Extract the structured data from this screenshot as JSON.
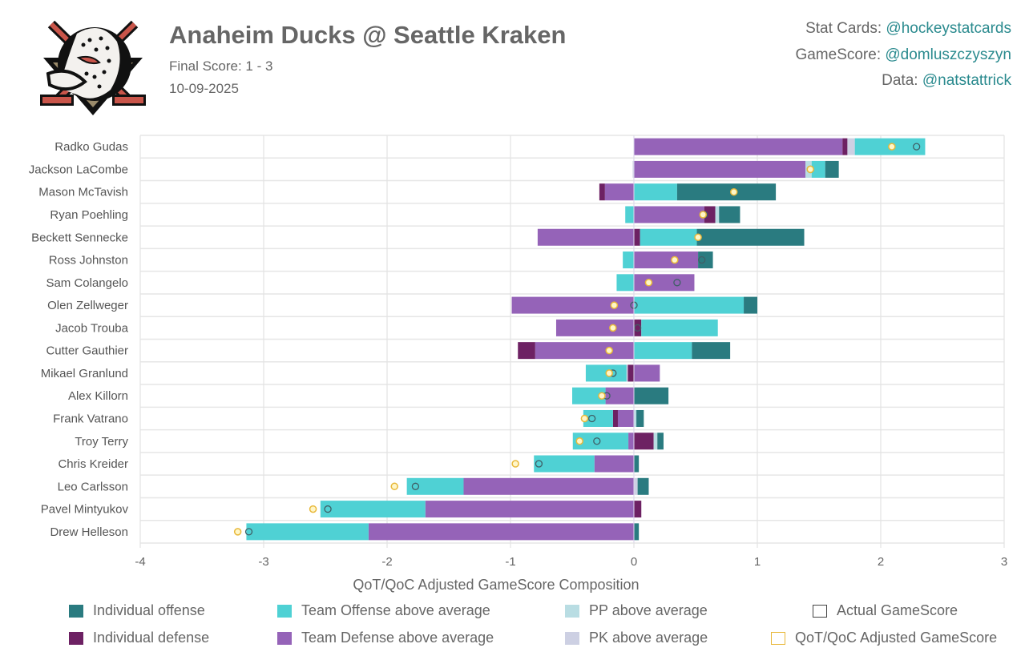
{
  "header": {
    "title": "Anaheim Ducks @ Seattle Kraken",
    "final_score": "Final Score: 1 - 3",
    "date": "10-09-2025",
    "logo": "anaheim-ducks-logo"
  },
  "credits": [
    {
      "label": "Stat Cards: ",
      "handle": "@hockeystatcards"
    },
    {
      "label": "GameScore: ",
      "handle": "@domluszczyszyn"
    },
    {
      "label": "Data: ",
      "handle": "@natstattrick"
    }
  ],
  "chart_data": {
    "type": "bar",
    "orientation": "horizontal-stacked",
    "xlabel": "QoT/QoC Adjusted GameScore Composition",
    "xlim": [
      -4,
      3
    ],
    "xticks": [
      "-4",
      "-3",
      "-2",
      "-1",
      "0",
      "1",
      "2",
      "3"
    ],
    "grid": true,
    "legend_placement": "bottom",
    "series_keys": [
      "team_def",
      "ind_def",
      "pk",
      "pp",
      "team_off",
      "ind_off"
    ],
    "series": [
      {
        "key": "ind_off",
        "name": "Individual offense",
        "color": "#2a7b80"
      },
      {
        "key": "team_off",
        "name": "Team Offense above average",
        "color": "#4fd1d4"
      },
      {
        "key": "pp",
        "name": "PP above average",
        "color": "#b9dde3"
      },
      {
        "key": "actual",
        "name": "Actual GameScore",
        "color": "#444444",
        "marker": "hollow-circle"
      },
      {
        "key": "ind_def",
        "name": "Individual defense",
        "color": "#6d2163"
      },
      {
        "key": "team_def",
        "name": "Team Defense above average",
        "color": "#9563b8"
      },
      {
        "key": "pk",
        "name": "PK above average",
        "color": "#cdd0e3"
      },
      {
        "key": "adjusted",
        "name": "QoT/QoC Adjusted GameScore",
        "color": "#e8b83a",
        "marker": "circle"
      }
    ],
    "players": [
      {
        "name": "Radko Gudas",
        "team_def": 1.69,
        "ind_def": 0.04,
        "pk": 0.06,
        "pp": 0,
        "team_off": 0.57,
        "ind_off": 0,
        "actual": 2.29,
        "adjusted": 2.09
      },
      {
        "name": "Jackson LaCombe",
        "team_def": 1.39,
        "ind_def": 0,
        "pk": -0.01,
        "pp": 0.05,
        "team_off": 0.11,
        "ind_off": 0.11,
        "actual": 1.43,
        "adjusted": 1.43
      },
      {
        "name": "Mason McTavish",
        "team_def": -0.235,
        "ind_def": -0.045,
        "pk": 0,
        "pp": 0,
        "team_off": 0.35,
        "ind_off": 0.8,
        "actual": 0.81,
        "adjusted": 0.81
      },
      {
        "name": "Ryan Poehling",
        "team_def": 0.57,
        "ind_def": 0.09,
        "pk": 0,
        "pp": 0.03,
        "team_off": -0.07,
        "ind_off": 0.17,
        "actual": 0.57,
        "adjusted": 0.56
      },
      {
        "name": "Beckett Sennecke",
        "team_def": -0.78,
        "ind_def": 0.05,
        "pk": 0,
        "pp": 0,
        "team_off": 0.46,
        "ind_off": 0.87,
        "actual": 0.52,
        "adjusted": 0.52
      },
      {
        "name": "Ross Johnston",
        "team_def": 0.52,
        "ind_def": 0,
        "pk": 0,
        "pp": 0,
        "team_off": -0.09,
        "ind_off": 0.12,
        "actual": 0.55,
        "adjusted": 0.33
      },
      {
        "name": "Sam Colangelo",
        "team_def": 0.49,
        "ind_def": 0,
        "pk": 0,
        "pp": 0,
        "team_off": -0.14,
        "ind_off": 0,
        "actual": 0.35,
        "adjusted": 0.12
      },
      {
        "name": "Olen Zellweger",
        "team_def": -0.99,
        "ind_def": 0,
        "pk": 0,
        "pp": 0,
        "team_off": 0.89,
        "ind_off": 0.11,
        "actual": 0.0,
        "adjusted": -0.16
      },
      {
        "name": "Jacob Trouba",
        "team_def": -0.63,
        "ind_def": 0.06,
        "pk": 0,
        "pp": 0,
        "team_off": 0.62,
        "ind_off": 0,
        "actual": 0.03,
        "adjusted": -0.17
      },
      {
        "name": "Cutter Gauthier",
        "team_def": -0.8,
        "ind_def": -0.14,
        "pk": 0,
        "pp": 0,
        "team_off": 0.47,
        "ind_off": 0.31,
        "actual": -0.2,
        "adjusted": -0.2
      },
      {
        "name": "Mikael Granlund",
        "team_def": 0.21,
        "ind_def": -0.05,
        "pk": -0.01,
        "pp": 0,
        "team_off": -0.33,
        "ind_off": 0,
        "actual": -0.17,
        "adjusted": -0.2
      },
      {
        "name": "Alex Killorn",
        "team_def": -0.23,
        "ind_def": 0,
        "pk": 0,
        "pp": 0,
        "team_off": -0.27,
        "ind_off": 0.28,
        "actual": -0.22,
        "adjusted": -0.26
      },
      {
        "name": "Frank Vatrano",
        "team_def": -0.13,
        "ind_def": -0.04,
        "pk": 0,
        "pp": 0.02,
        "team_off": -0.24,
        "ind_off": 0.06,
        "actual": -0.34,
        "adjusted": -0.4
      },
      {
        "name": "Troy Terry",
        "team_def": -0.045,
        "ind_def": 0.16,
        "pk": 0,
        "pp": 0.03,
        "team_off": -0.45,
        "ind_off": 0.05,
        "actual": -0.3,
        "adjusted": -0.44
      },
      {
        "name": "Chris Kreider",
        "team_def": -0.32,
        "ind_def": 0,
        "pk": 0,
        "pp": 0,
        "team_off": -0.49,
        "ind_off": 0.04,
        "actual": -0.77,
        "adjusted": -0.96
      },
      {
        "name": "Leo Carlsson",
        "team_def": -1.38,
        "ind_def": 0,
        "pk": 0.03,
        "pp": 0,
        "team_off": -0.46,
        "ind_off": 0.09,
        "actual": -1.77,
        "adjusted": -1.94
      },
      {
        "name": "Pavel Mintyukov",
        "team_def": -1.69,
        "ind_def": 0.06,
        "pk": 0,
        "pp": 0,
        "team_off": -0.85,
        "ind_off": 0,
        "actual": -2.48,
        "adjusted": -2.6
      },
      {
        "name": "Drew Helleson",
        "team_def": -2.15,
        "ind_def": 0,
        "pk": 0,
        "pp": 0,
        "team_off": -0.99,
        "ind_off": 0.04,
        "actual": -3.12,
        "adjusted": -3.21
      }
    ]
  }
}
